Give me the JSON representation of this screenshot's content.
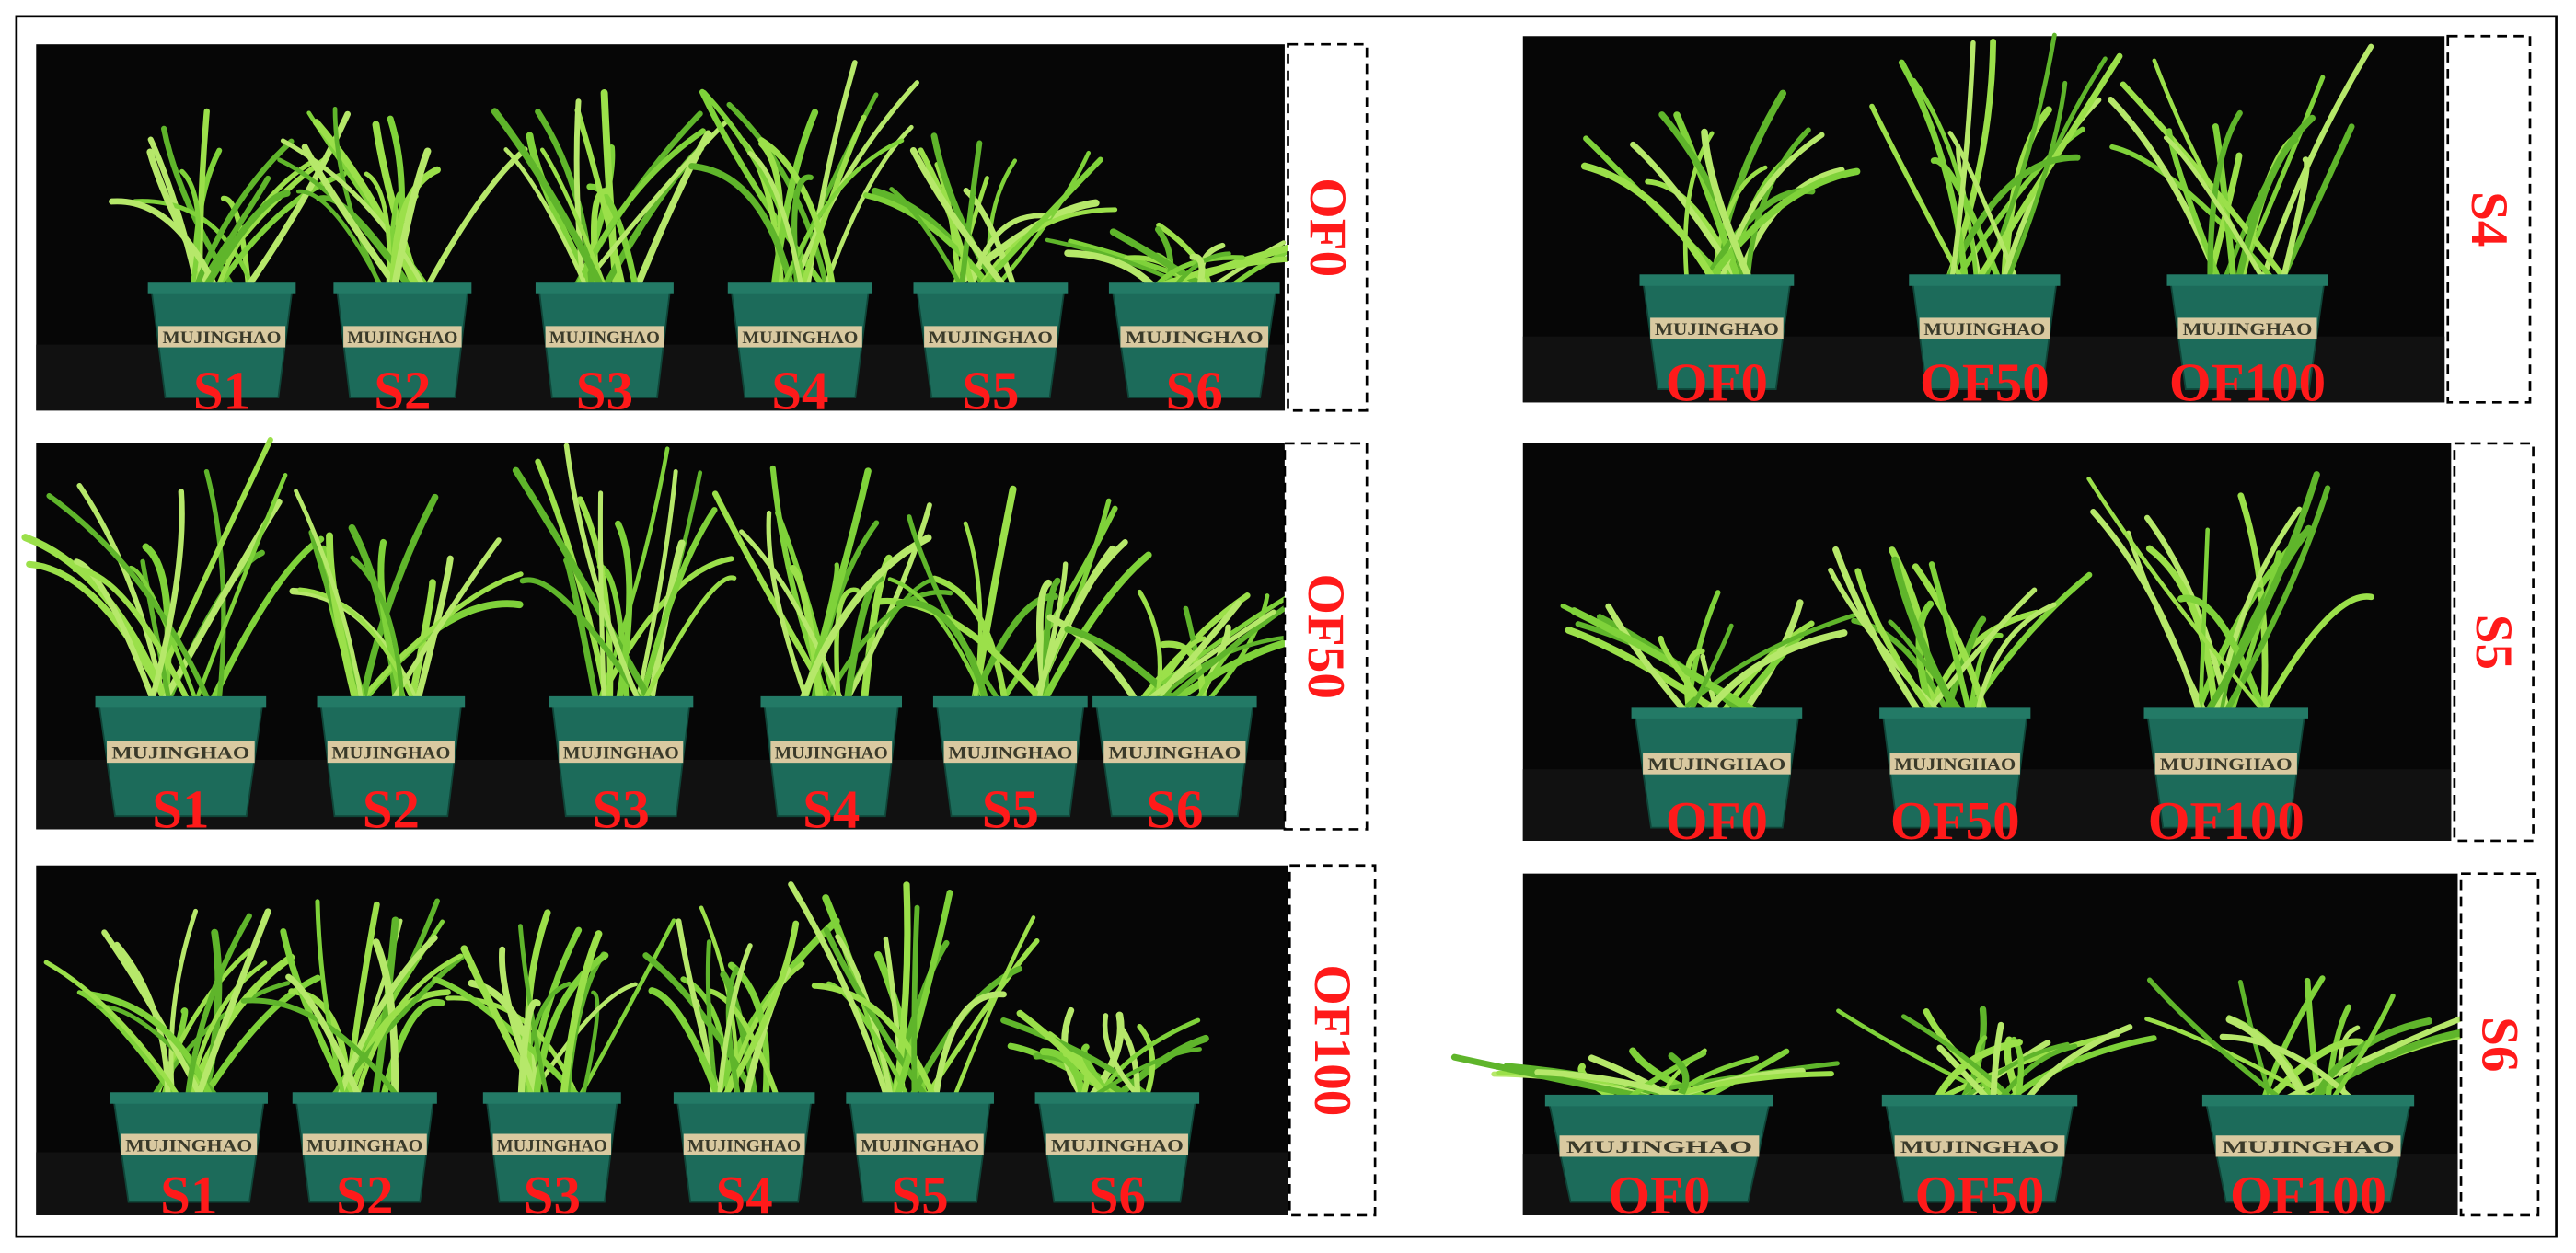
{
  "left_panels": [
    {
      "side_label": "OF0",
      "pot_labels": [
        "S1",
        "S2",
        "S3",
        "S4",
        "S5",
        "S6"
      ]
    },
    {
      "side_label": "OF50",
      "pot_labels": [
        "S1",
        "S2",
        "S3",
        "S4",
        "S5",
        "S6"
      ]
    },
    {
      "side_label": "OF100",
      "pot_labels": [
        "S1",
        "S2",
        "S3",
        "S4",
        "S5",
        "S6"
      ]
    }
  ],
  "right_panels": [
    {
      "side_label": "S4",
      "pot_labels": [
        "OF0",
        "OF50",
        "OF100"
      ]
    },
    {
      "side_label": "S5",
      "pot_labels": [
        "OF0",
        "OF50",
        "OF100"
      ]
    },
    {
      "side_label": "S6",
      "pot_labels": [
        "OF0",
        "OF50",
        "OF100"
      ]
    }
  ],
  "pot_brand": "MUJINGHAO"
}
